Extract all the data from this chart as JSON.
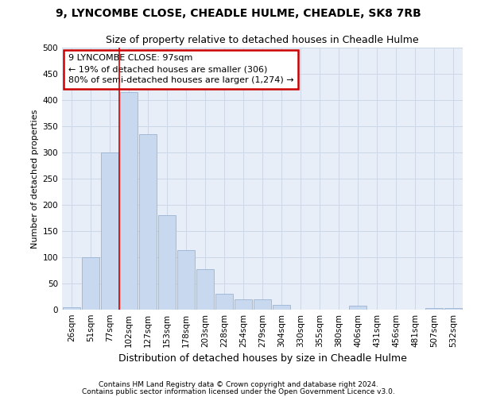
{
  "title_line1": "9, LYNCOMBE CLOSE, CHEADLE HULME, CHEADLE, SK8 7RB",
  "title_line2": "Size of property relative to detached houses in Cheadle Hulme",
  "xlabel": "Distribution of detached houses by size in Cheadle Hulme",
  "ylabel": "Number of detached properties",
  "footer_line1": "Contains HM Land Registry data © Crown copyright and database right 2024.",
  "footer_line2": "Contains public sector information licensed under the Open Government Licence v3.0.",
  "bar_labels": [
    "26sqm",
    "51sqm",
    "77sqm",
    "102sqm",
    "127sqm",
    "153sqm",
    "178sqm",
    "203sqm",
    "228sqm",
    "254sqm",
    "279sqm",
    "304sqm",
    "330sqm",
    "355sqm",
    "380sqm",
    "406sqm",
    "431sqm",
    "456sqm",
    "481sqm",
    "507sqm",
    "532sqm"
  ],
  "bar_values": [
    5,
    100,
    300,
    415,
    335,
    180,
    113,
    78,
    30,
    19,
    19,
    9,
    0,
    0,
    0,
    7,
    0,
    0,
    0,
    3,
    3
  ],
  "bar_color": "#c8d8ee",
  "bar_edge_color": "#9ab4d4",
  "grid_color": "#ccd8e8",
  "background_color": "#e8eef8",
  "vline_color": "#cc0000",
  "vline_x": 2.5,
  "annotation_text": "9 LYNCOMBE CLOSE: 97sqm\n← 19% of detached houses are smaller (306)\n80% of semi-detached houses are larger (1,274) →",
  "annotation_box_color": "white",
  "annotation_box_edge": "#cc0000",
  "ylim": [
    0,
    500
  ],
  "yticks": [
    0,
    50,
    100,
    150,
    200,
    250,
    300,
    350,
    400,
    450,
    500
  ],
  "title1_fontsize": 10,
  "title2_fontsize": 9,
  "ylabel_fontsize": 8,
  "xlabel_fontsize": 9,
  "tick_fontsize": 7.5,
  "annot_fontsize": 8,
  "footer_fontsize": 6.5
}
